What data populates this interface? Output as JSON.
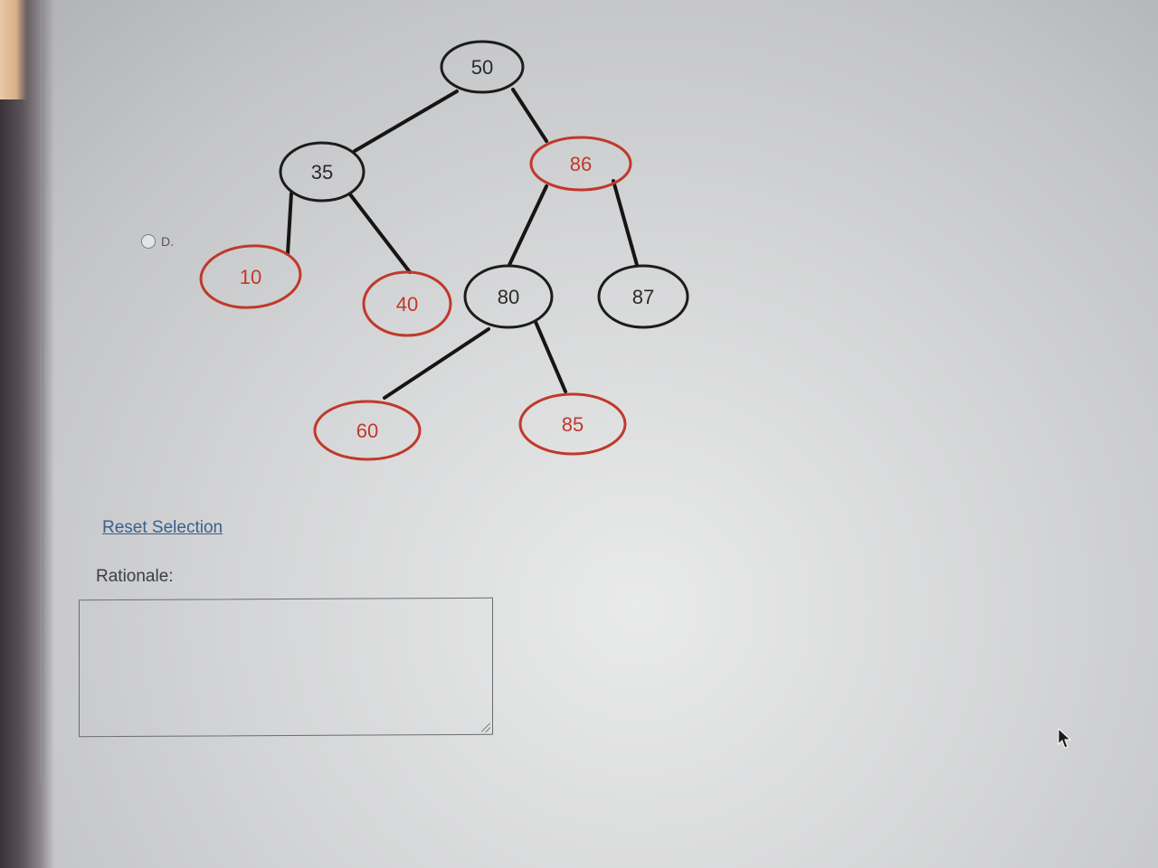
{
  "question": {
    "option": {
      "label": "D."
    },
    "tree": {
      "nodes": [
        {
          "id": "n50",
          "value": "50",
          "color": "black"
        },
        {
          "id": "n35",
          "value": "35",
          "color": "black"
        },
        {
          "id": "n86",
          "value": "86",
          "color": "red"
        },
        {
          "id": "n10",
          "value": "10",
          "color": "red"
        },
        {
          "id": "n40",
          "value": "40",
          "color": "red"
        },
        {
          "id": "n80",
          "value": "80",
          "color": "black"
        },
        {
          "id": "n87",
          "value": "87",
          "color": "black"
        },
        {
          "id": "n60",
          "value": "60",
          "color": "red"
        },
        {
          "id": "n85",
          "value": "85",
          "color": "red"
        }
      ],
      "edges": [
        [
          "n50",
          "n35"
        ],
        [
          "n50",
          "n86"
        ],
        [
          "n35",
          "n10"
        ],
        [
          "n35",
          "n40"
        ],
        [
          "n86",
          "n80"
        ],
        [
          "n86",
          "n87"
        ],
        [
          "n80",
          "n60"
        ],
        [
          "n80",
          "n85"
        ]
      ],
      "colors": {
        "red": "#c0392b",
        "black": "#1c1c1c"
      }
    }
  },
  "reset_label": "Reset Selection",
  "rationale": {
    "label": "Rationale:",
    "value": ""
  }
}
